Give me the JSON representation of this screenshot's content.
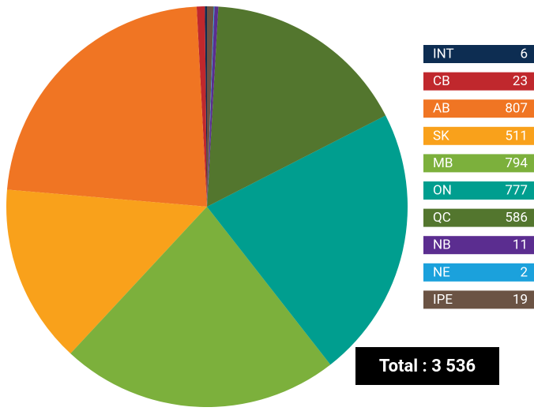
{
  "chart_data": {
    "type": "pie",
    "categories": [
      "INT",
      "CB",
      "AB",
      "SK",
      "MB",
      "ON",
      "QC",
      "NB",
      "NE",
      "IPE"
    ],
    "values": [
      6,
      23,
      807,
      511,
      794,
      777,
      586,
      11,
      2,
      19
    ],
    "colors": [
      "#0d2d52",
      "#c0282d",
      "#f07523",
      "#f9a11b",
      "#7cb03c",
      "#009e8f",
      "#53762e",
      "#5b2d90",
      "#1ba1dc",
      "#6b5344"
    ],
    "total_label": "Total : 3 536"
  }
}
